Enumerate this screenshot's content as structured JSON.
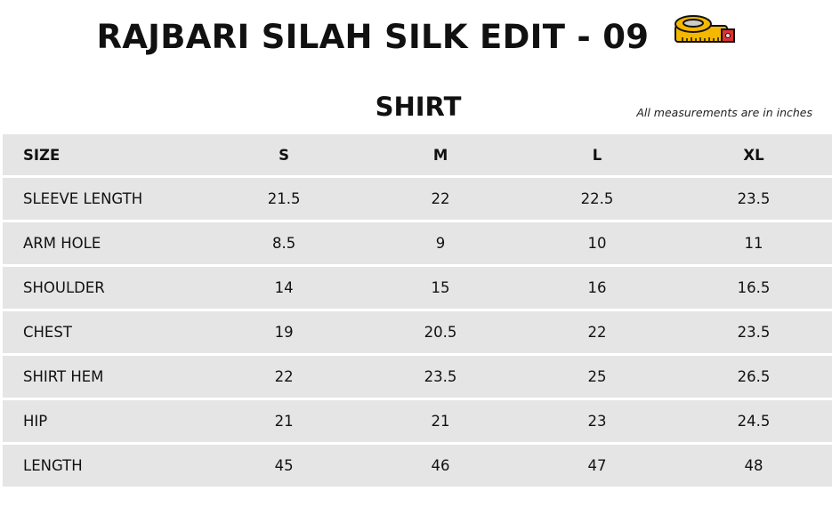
{
  "title": "RAJBARI SILAH SILK EDIT - 09",
  "title_icon": "measuring-tape-icon",
  "section": "SHIRT",
  "note": "All measurements are in inches",
  "columns": [
    "SIZE",
    "S",
    "M",
    "L",
    "XL"
  ],
  "rows": [
    {
      "label": "SLEEVE LENGTH",
      "values": [
        "21.5",
        "22",
        "22.5",
        "23.5"
      ]
    },
    {
      "label": "ARM HOLE",
      "values": [
        "8.5",
        "9",
        "10",
        "11"
      ]
    },
    {
      "label": "SHOULDER",
      "values": [
        "14",
        "15",
        "16",
        "16.5"
      ]
    },
    {
      "label": "CHEST",
      "values": [
        "19",
        "20.5",
        "22",
        "23.5"
      ]
    },
    {
      "label": "SHIRT HEM",
      "values": [
        "22",
        "23.5",
        "25",
        "26.5"
      ]
    },
    {
      "label": "HIP",
      "values": [
        "21",
        "21",
        "23",
        "24.5"
      ]
    },
    {
      "label": "LENGTH",
      "values": [
        "45",
        "46",
        "47",
        "48"
      ]
    }
  ]
}
